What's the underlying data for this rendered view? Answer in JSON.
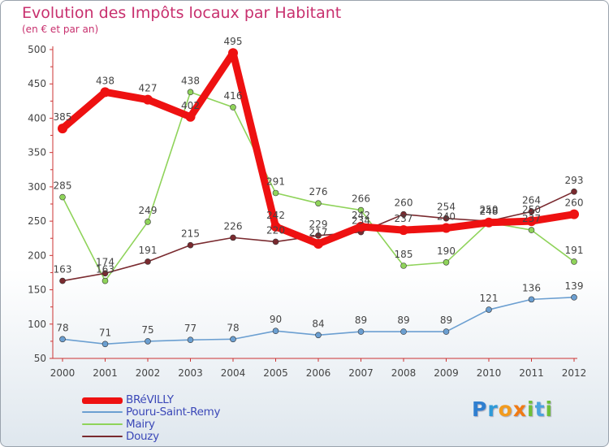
{
  "chart_data": {
    "type": "line",
    "title": "Evolution des Impôts locaux par Habitant",
    "subtitle": "(en € et par an)",
    "categories": [
      "2000",
      "2001",
      "2002",
      "2003",
      "2004",
      "2005",
      "2006",
      "2007",
      "2008",
      "2009",
      "2010",
      "2011",
      "2012"
    ],
    "ylim": [
      50,
      500
    ],
    "yticks": [
      50,
      100,
      150,
      200,
      250,
      300,
      350,
      400,
      450,
      500
    ],
    "grid": false,
    "legend_position": "bottom-left",
    "series": [
      {
        "name": "BRéVILLY",
        "color": "#ee1111",
        "values": [
          385,
          438,
          427,
          402,
          495,
          242,
          217,
          242,
          237,
          240,
          248,
          250,
          260
        ]
      },
      {
        "name": "Pouru-Saint-Remy",
        "color": "#6b9fd1",
        "values": [
          78,
          71,
          75,
          77,
          78,
          90,
          84,
          89,
          89,
          89,
          121,
          136,
          139
        ]
      },
      {
        "name": "Mairy",
        "color": "#8fd35a",
        "values": [
          285,
          163,
          249,
          438,
          416,
          291,
          276,
          266,
          185,
          190,
          248,
          237,
          191
        ]
      },
      {
        "name": "Douzy",
        "color": "#7a2a2f",
        "values": [
          163,
          174,
          191,
          215,
          226,
          220,
          229,
          234,
          260,
          254,
          250,
          264,
          293
        ]
      }
    ]
  },
  "logo": {
    "letters": [
      {
        "ch": "P",
        "color": "#2f7fd0"
      },
      {
        "ch": "r",
        "color": "#2f9ad8"
      },
      {
        "ch": "o",
        "color": "#f29b1e"
      },
      {
        "ch": "x",
        "color": "#f07a14"
      },
      {
        "ch": "i",
        "color": "#6fbf3a"
      },
      {
        "ch": "t",
        "color": "#4aa3df"
      },
      {
        "ch": "i",
        "color": "#6fbf3a"
      }
    ]
  }
}
